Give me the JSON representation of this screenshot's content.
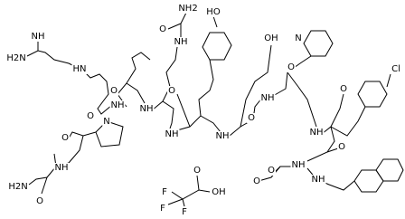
{
  "labels": [
    "NH",
    "H2N",
    "HN",
    "O",
    "NH",
    "N",
    "O",
    "NH",
    "H2N",
    "O",
    "O",
    "NH",
    "NH2",
    "O",
    "NH",
    "O",
    "NH",
    "HO",
    "O",
    "NH",
    "OH",
    "O",
    "NH",
    "N",
    "O",
    "NH",
    "Cl",
    "O",
    "NH",
    "O",
    "O",
    "NH",
    "O",
    "OH",
    "F",
    "F",
    "F"
  ]
}
